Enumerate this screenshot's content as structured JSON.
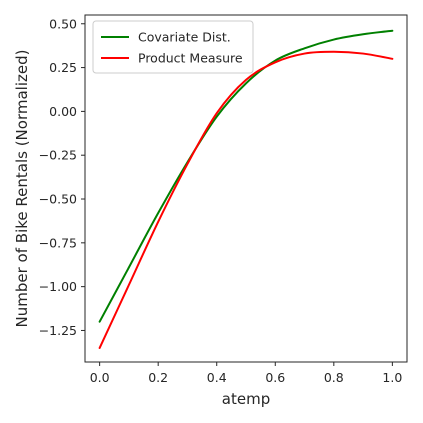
{
  "chart_data": {
    "type": "line",
    "title": "",
    "xlabel": "atemp",
    "ylabel": "Number of Bike Rentals (Normalized)",
    "xlim": [
      -0.05,
      1.05
    ],
    "ylim": [
      -1.43,
      0.55
    ],
    "xticks": [
      0.0,
      0.2,
      0.4,
      0.6,
      0.8,
      1.0
    ],
    "xtick_labels": [
      "0.0",
      "0.2",
      "0.4",
      "0.6",
      "0.8",
      "1.0"
    ],
    "yticks": [
      0.5,
      0.25,
      0.0,
      -0.25,
      -0.5,
      -0.75,
      -1.0,
      -1.25
    ],
    "ytick_labels": [
      "0.50",
      "0.25",
      "0.00",
      "−0.25",
      "−0.50",
      "−0.75",
      "−1.00",
      "−1.25"
    ],
    "grid": false,
    "legend_position": "upper-left",
    "series": [
      {
        "name": "Covariate Dist.",
        "color": "#008000",
        "x": [
          0.0,
          0.1,
          0.2,
          0.3,
          0.4,
          0.5,
          0.6,
          0.7,
          0.8,
          0.9,
          1.0
        ],
        "y": [
          -1.2,
          -0.89,
          -0.58,
          -0.29,
          -0.03,
          0.16,
          0.29,
          0.36,
          0.41,
          0.44,
          0.46
        ]
      },
      {
        "name": "Product Measure",
        "color": "#ff0000",
        "x": [
          0.0,
          0.1,
          0.2,
          0.3,
          0.4,
          0.5,
          0.6,
          0.7,
          0.8,
          0.9,
          1.0
        ],
        "y": [
          -1.35,
          -0.99,
          -0.63,
          -0.3,
          -0.01,
          0.18,
          0.28,
          0.33,
          0.34,
          0.33,
          0.3
        ]
      }
    ]
  }
}
